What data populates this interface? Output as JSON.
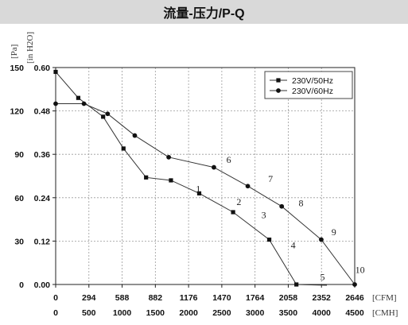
{
  "title": "流量-压力/P-Q",
  "chart_data": {
    "type": "line",
    "title": "流量-压力/P-Q",
    "x_units": [
      "[CFM]",
      "[CMH]"
    ],
    "y_units": [
      "[Pa]",
      "[in H2O]"
    ],
    "x_ticks_cfm": [
      "0",
      "294",
      "588",
      "882",
      "1176",
      "1470",
      "1764",
      "2058",
      "2352",
      "2646"
    ],
    "x_ticks_cmh": [
      "0",
      "500",
      "1000",
      "1500",
      "2000",
      "2500",
      "3000",
      "3500",
      "4000",
      "4500"
    ],
    "y_ticks_pa": [
      "0",
      "30",
      "60",
      "90",
      "120",
      "150"
    ],
    "y_ticks_inh2o": [
      "0.00",
      "0.12",
      "0.24",
      "0.36",
      "0.48",
      "0.60"
    ],
    "xlim": [
      0,
      2646
    ],
    "ylim": [
      0,
      150
    ],
    "grid": true,
    "legend_position": "top-right",
    "series": [
      {
        "name": "230V/50Hz",
        "marker": "square",
        "x": [
          0,
          200,
          420,
          600,
          800,
          1020,
          1270,
          1570,
          1890,
          2130,
          2400
        ],
        "y": [
          147,
          129,
          116,
          94,
          74,
          72,
          63,
          50,
          31,
          0,
          -2
        ]
      },
      {
        "name": "230V/60Hz",
        "marker": "circle",
        "x": [
          0,
          250,
          460,
          700,
          1000,
          1400,
          1700,
          2000,
          2350,
          2646
        ],
        "y": [
          125,
          125,
          118,
          103,
          88,
          81,
          68,
          54,
          31,
          0
        ]
      }
    ],
    "annotations": [
      {
        "text": "1",
        "x": 1240,
        "y": 64
      },
      {
        "text": "2",
        "x": 1600,
        "y": 55
      },
      {
        "text": "3",
        "x": 1820,
        "y": 46
      },
      {
        "text": "4",
        "x": 2080,
        "y": 25
      },
      {
        "text": "5",
        "x": 2340,
        "y": 3
      },
      {
        "text": "6",
        "x": 1510,
        "y": 84
      },
      {
        "text": "7",
        "x": 1880,
        "y": 71
      },
      {
        "text": "8",
        "x": 2150,
        "y": 54
      },
      {
        "text": "9",
        "x": 2440,
        "y": 34
      },
      {
        "text": "10",
        "x": 2650,
        "y": 8
      }
    ]
  }
}
